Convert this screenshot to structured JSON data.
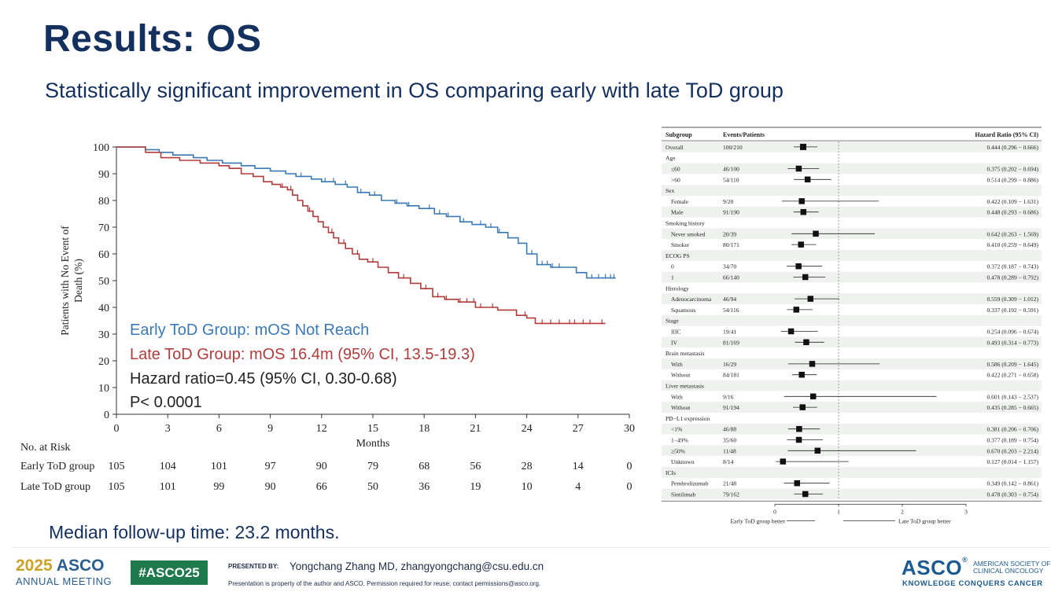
{
  "slide": {
    "title": "Results: OS",
    "subtitle": "Statistically significant improvement in OS comparing early with late ToD group",
    "followup": "Median follow-up time: 23.2 months."
  },
  "chart_data": [
    {
      "type": "line",
      "subtype": "kaplan-meier",
      "ylabel_line1": "Patients with No Event of",
      "ylabel_line2": "Death (%)",
      "xlabel": "Months",
      "xlim": [
        0,
        30
      ],
      "ylim": [
        0,
        100
      ],
      "x_ticks": [
        0,
        3,
        6,
        9,
        12,
        15,
        18,
        21,
        24,
        27,
        30
      ],
      "y_ticks": [
        0,
        10,
        20,
        30,
        40,
        50,
        60,
        70,
        80,
        90,
        100
      ],
      "series": [
        {
          "name": "Early ToD Group",
          "color": "#3b79b4",
          "x": [
            0,
            1.7,
            2.5,
            3.3,
            4.5,
            5.3,
            6.2,
            7.3,
            8.1,
            9.0,
            9.9,
            10.5,
            11.4,
            12.0,
            12.8,
            13.5,
            14.1,
            14.8,
            15.5,
            16.3,
            17.0,
            17.7,
            18.6,
            19.3,
            20.1,
            20.8,
            21.6,
            22.3,
            22.9,
            23.5,
            24.0,
            24.6,
            25.4,
            26.2,
            26.9,
            27.5,
            29.2
          ],
          "y": [
            100,
            99,
            98,
            97,
            96,
            95,
            94,
            93,
            92,
            91,
            90,
            89,
            88,
            87,
            86,
            85,
            83,
            82,
            80,
            79,
            78,
            77,
            75,
            74,
            72,
            71,
            70,
            68,
            66,
            64,
            60,
            56,
            55,
            55,
            53,
            51,
            51
          ],
          "censor_x": [
            10.8,
            12.2,
            12.7,
            13.4,
            14.3,
            15.1,
            16.4,
            17.1,
            18.3,
            18.9,
            19.4,
            20.3,
            21.3,
            21.9,
            22.4,
            24.3,
            24.6,
            24.9,
            25.2,
            25.5,
            25.9,
            27.8,
            28.2,
            28.6,
            28.9,
            29.1
          ]
        },
        {
          "name": "Late ToD Group",
          "color": "#b23b3b",
          "x": [
            0,
            1.7,
            2.6,
            3.7,
            4.9,
            6.0,
            6.6,
            7.3,
            8.0,
            8.6,
            9.1,
            9.6,
            10.0,
            10.3,
            10.6,
            10.9,
            11.2,
            11.5,
            11.8,
            12.1,
            12.4,
            12.7,
            13.0,
            13.4,
            13.8,
            14.2,
            14.7,
            15.3,
            15.9,
            16.5,
            17.2,
            17.8,
            18.5,
            19.2,
            20.0,
            21.0,
            22.3,
            23.4,
            24.0,
            24.5,
            28.6
          ],
          "y": [
            100,
            98,
            96,
            95,
            94,
            93,
            92,
            90,
            89,
            87,
            86,
            85,
            84,
            82,
            80,
            78,
            76,
            74,
            72,
            70,
            68,
            66,
            64,
            62,
            60,
            58,
            57,
            55,
            53,
            51,
            49,
            47,
            44,
            43,
            42,
            40,
            39,
            37,
            36,
            34,
            34
          ],
          "censor_x": [
            9.7,
            10.2,
            10.9,
            11.3,
            12.6,
            13.3,
            14.1,
            15.0,
            16.8,
            18.1,
            18.8,
            19.3,
            20.1,
            20.5,
            20.9,
            21.3,
            22.0,
            23.9,
            24.9,
            25.4,
            25.9,
            26.5,
            26.8,
            27.3,
            27.7,
            28.4
          ]
        }
      ],
      "annotations": {
        "early": "Early ToD Group: mOS Not Reach",
        "late": "Late ToD Group: mOS 16.4m (95% CI, 13.5-19.3)",
        "hr": "Hazard ratio=0.45 (95% CI, 0.30-0.68)",
        "p": "P< 0.0001"
      },
      "risk_table": {
        "title": "No. at Risk",
        "rows": [
          {
            "label": "Early ToD group",
            "values": [
              "105",
              "104",
              "101",
              "97",
              "90",
              "79",
              "68",
              "56",
              "28",
              "14",
              "0"
            ]
          },
          {
            "label": "Late ToD group",
            "values": [
              "105",
              "101",
              "99",
              "90",
              "66",
              "50",
              "36",
              "19",
              "10",
              "4",
              "0"
            ]
          }
        ]
      }
    },
    {
      "type": "forest",
      "headers": {
        "subgroup": "Subgroup",
        "events": "Events/Patients",
        "hr": "Hazard Ratio (95% CI)"
      },
      "xlim": [
        0,
        3
      ],
      "x_ticks": [
        "0",
        "1",
        "2",
        "3"
      ],
      "reference": 1,
      "footer_left": "Early ToD group better",
      "footer_right": "Late ToD group better",
      "rows": [
        {
          "label": "Overall",
          "indent": false,
          "events": "100/210",
          "hr": 0.444,
          "lo": 0.296,
          "hi": 0.666,
          "hr_text": "0.444 (0.296 − 0.666)"
        },
        {
          "label": "Age",
          "header": true
        },
        {
          "label": "≤60",
          "indent": true,
          "events": "46/100",
          "hr": 0.375,
          "lo": 0.202,
          "hi": 0.694,
          "hr_text": "0.375 (0.202 − 0.694)"
        },
        {
          "label": ">60",
          "indent": true,
          "events": "54/110",
          "hr": 0.514,
          "lo": 0.299,
          "hi": 0.886,
          "hr_text": "0.514 (0.299 − 0.886)"
        },
        {
          "label": "Sex",
          "header": true
        },
        {
          "label": "Female",
          "indent": true,
          "events": "9/20",
          "hr": 0.422,
          "lo": 0.109,
          "hi": 1.631,
          "hr_text": "0.422 (0.109 − 1.631)"
        },
        {
          "label": "Male",
          "indent": true,
          "events": "91/190",
          "hr": 0.448,
          "lo": 0.293,
          "hi": 0.686,
          "hr_text": "0.448 (0.293 − 0.686)"
        },
        {
          "label": "Smoking history",
          "header": true
        },
        {
          "label": "Never smoked",
          "indent": true,
          "events": "20/39",
          "hr": 0.642,
          "lo": 0.263,
          "hi": 1.569,
          "hr_text": "0.642 (0.263 − 1.569)"
        },
        {
          "label": "Smoker",
          "indent": true,
          "events": "80/171",
          "hr": 0.41,
          "lo": 0.259,
          "hi": 0.649,
          "hr_text": "0.410 (0.259 − 0.649)"
        },
        {
          "label": "ECOG PS",
          "header": true
        },
        {
          "label": "0",
          "indent": true,
          "events": "34/70",
          "hr": 0.372,
          "lo": 0.187,
          "hi": 0.743,
          "hr_text": "0.372 (0.187 − 0.743)"
        },
        {
          "label": "1",
          "indent": true,
          "events": "66/140",
          "hr": 0.478,
          "lo": 0.289,
          "hi": 0.792,
          "hr_text": "0.478 (0.289 − 0.792)"
        },
        {
          "label": "Histology",
          "header": true
        },
        {
          "label": "Adenocarcinoma",
          "indent": true,
          "events": "46/94",
          "hr": 0.559,
          "lo": 0.309,
          "hi": 1.012,
          "hr_text": "0.559 (0.309 − 1.012)"
        },
        {
          "label": "Squamous",
          "indent": true,
          "events": "54/116",
          "hr": 0.337,
          "lo": 0.192,
          "hi": 0.591,
          "hr_text": "0.337 (0.192 − 0.591)"
        },
        {
          "label": "Stage",
          "header": true
        },
        {
          "label": "IIIC",
          "indent": true,
          "events": "19/41",
          "hr": 0.254,
          "lo": 0.096,
          "hi": 0.674,
          "hr_text": "0.254 (0.096 − 0.674)"
        },
        {
          "label": "IV",
          "indent": true,
          "events": "81/169",
          "hr": 0.493,
          "lo": 0.314,
          "hi": 0.773,
          "hr_text": "0.493 (0.314 − 0.773)"
        },
        {
          "label": "Brain metastasis",
          "header": true
        },
        {
          "label": "With",
          "indent": true,
          "events": "16/29",
          "hr": 0.586,
          "lo": 0.209,
          "hi": 1.645,
          "hr_text": "0.586 (0.209 − 1.645)"
        },
        {
          "label": "Without",
          "indent": true,
          "events": "84/181",
          "hr": 0.422,
          "lo": 0.271,
          "hi": 0.658,
          "hr_text": "0.422 (0.271 − 0.658)"
        },
        {
          "label": "Liver metastasis",
          "header": true
        },
        {
          "label": "With",
          "indent": true,
          "events": "9/16",
          "hr": 0.601,
          "lo": 0.143,
          "hi": 2.537,
          "hr_text": "0.601 (0.143 − 2.537)"
        },
        {
          "label": "Without",
          "indent": true,
          "events": "91/194",
          "hr": 0.435,
          "lo": 0.285,
          "hi": 0.665,
          "hr_text": "0.435 (0.285 − 0.665)"
        },
        {
          "label": "PD−L1 expression",
          "header": true
        },
        {
          "label": "<1%",
          "indent": true,
          "events": "46/88",
          "hr": 0.381,
          "lo": 0.206,
          "hi": 0.706,
          "hr_text": "0.381 (0.206 − 0.706)"
        },
        {
          "label": "1−49%",
          "indent": true,
          "events": "35/60",
          "hr": 0.377,
          "lo": 0.189,
          "hi": 0.754,
          "hr_text": "0.377 (0.189 − 0.754)"
        },
        {
          "label": "≥50%",
          "indent": true,
          "events": "11/48",
          "hr": 0.67,
          "lo": 0.203,
          "hi": 2.214,
          "hr_text": "0.670 (0.203 − 2.214)"
        },
        {
          "label": "Unknown",
          "indent": true,
          "events": "8/14",
          "hr": 0.127,
          "lo": 0.014,
          "hi": 1.157,
          "hr_text": "0.127 (0.014 − 1.157)"
        },
        {
          "label": "ICIs",
          "header": true
        },
        {
          "label": "Pembrolizumab",
          "indent": true,
          "events": "21/48",
          "hr": 0.349,
          "lo": 0.142,
          "hi": 0.861,
          "hr_text": "0.349 (0.142 − 0.861)"
        },
        {
          "label": "Sintilimab",
          "indent": true,
          "events": "79/162",
          "hr": 0.478,
          "lo": 0.303,
          "hi": 0.754,
          "hr_text": "0.478 (0.303 − 0.754)"
        }
      ]
    }
  ],
  "footer": {
    "year": "2025",
    "brand": "ASCO",
    "meeting": "ANNUAL MEETING",
    "hashtag": "#ASCO25",
    "presented_by": "PRESENTED BY:",
    "presenter": "Yongchang Zhang MD, zhangyongchang@csu.edu.cn",
    "disclaimer": "Presentation is property of the author and ASCO. Permission required for reuse; contact permissions@asco.org.",
    "logo": "ASCO",
    "society": "AMERICAN SOCIETY OF CLINICAL ONCOLOGY",
    "tagline": "KNOWLEDGE CONQUERS CANCER"
  }
}
